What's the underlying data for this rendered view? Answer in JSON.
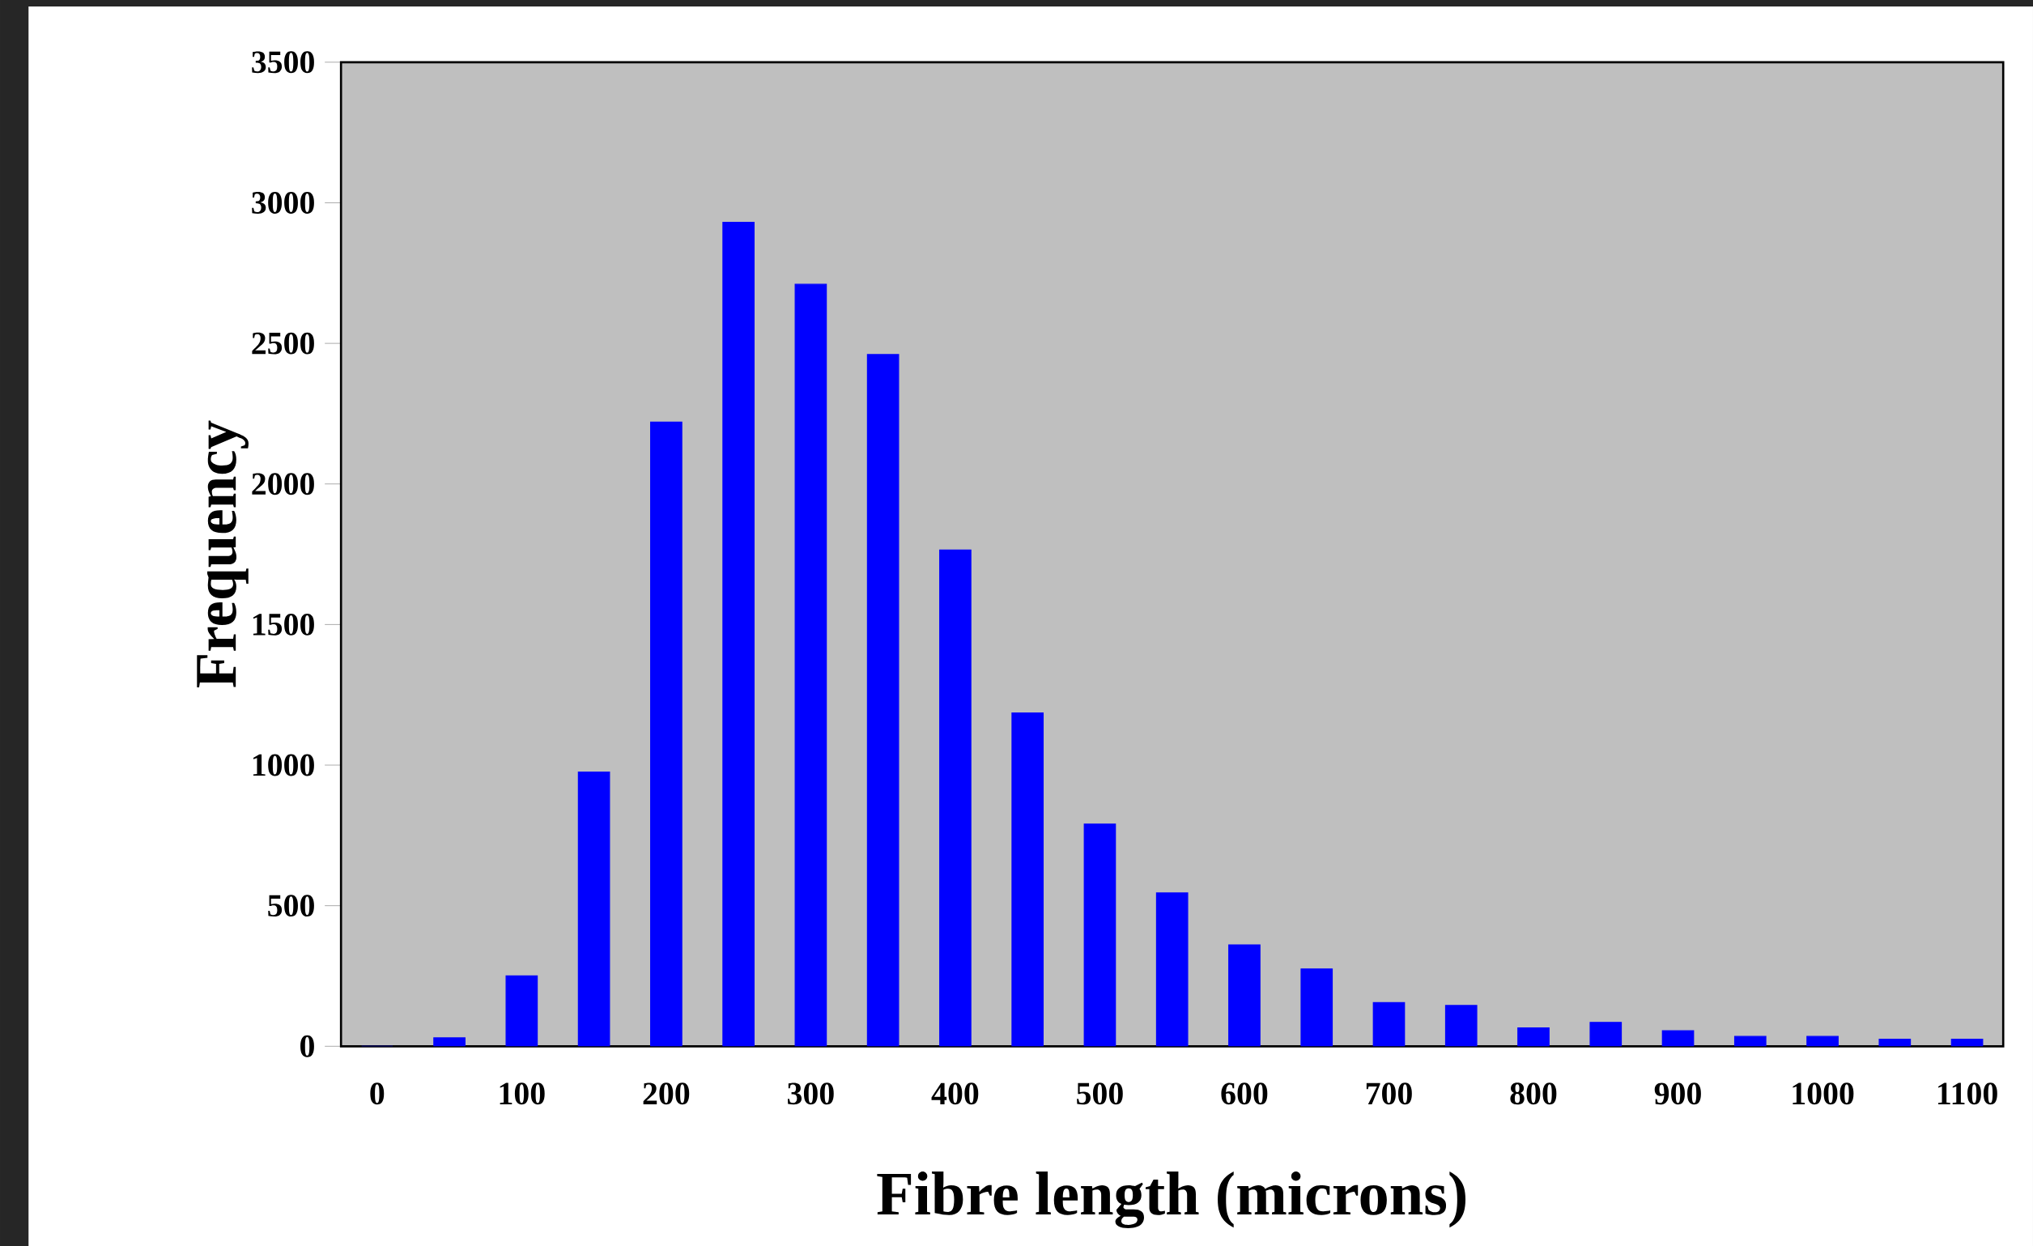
{
  "chart_data": {
    "type": "bar",
    "xlabel": "Fibre length (microns)",
    "ylabel": "Frequency",
    "categories": [
      "0",
      null,
      "100",
      null,
      "200",
      null,
      "300",
      null,
      "400",
      null,
      "500",
      null,
      "600",
      null,
      "700",
      null,
      "800",
      null,
      "900",
      null,
      "1000",
      null,
      "1100"
    ],
    "values": [
      0,
      30,
      250,
      975,
      2220,
      2930,
      2710,
      2460,
      1765,
      1185,
      790,
      545,
      360,
      275,
      155,
      145,
      65,
      85,
      55,
      35,
      35,
      25,
      25
    ],
    "color": "#0000ff",
    "ylim": [
      0,
      3500
    ],
    "yticks": [
      0,
      500,
      1000,
      1500,
      2000,
      2500,
      3000,
      3500
    ]
  }
}
